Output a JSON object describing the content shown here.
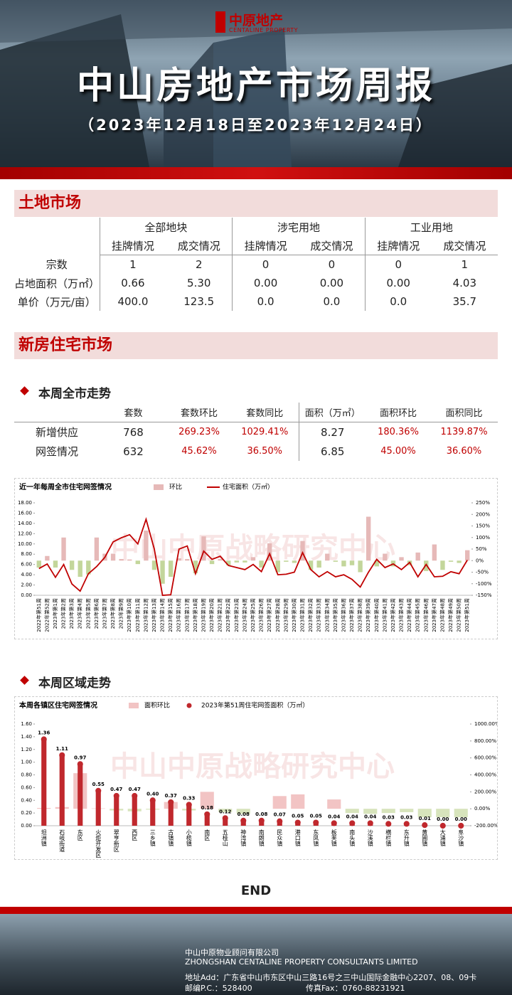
{
  "header": {
    "logo": "中原地产",
    "logo_en": "CENTALINE PROPERTY",
    "title": "中山房地产市场周报",
    "subtitle": "（2023年12月18日至2023年12月24日）"
  },
  "land_market": {
    "title": "土地市场",
    "groups": [
      "全部地块",
      "涉宅用地",
      "工业用地"
    ],
    "subheaders": [
      "挂牌情况",
      "成交情况",
      "挂牌情况",
      "成交情况",
      "挂牌情况",
      "成交情况"
    ],
    "rows": [
      [
        "宗数",
        "1",
        "2",
        "0",
        "0",
        "0",
        "1"
      ],
      [
        "占地面积（万㎡）",
        "0.66",
        "5.30",
        "0.00",
        "0.00",
        "0.00",
        "4.03"
      ],
      [
        "单价（万元/亩）",
        "400.0",
        "123.5",
        "0.0",
        "0.0",
        "0.0",
        "35.7"
      ]
    ]
  },
  "new_home": {
    "title": "新房住宅市场",
    "weekly_title": "本周全市走势",
    "headers": [
      "套数",
      "套数环比",
      "套数同比",
      "面积（万㎡）",
      "面积环比",
      "面积同比"
    ],
    "rows": [
      [
        "新增供应",
        "768",
        "269.23%",
        "1029.41%",
        "8.27",
        "180.36%",
        "1139.87%"
      ],
      [
        "网签情况",
        "632",
        "45.62%",
        "36.50%",
        "6.85",
        "45.00%",
        "36.60%"
      ]
    ],
    "region_title": "本周区域走势"
  },
  "chart_data": [
    {
      "type": "combo",
      "title": "近一年每周全市住宅网签情况",
      "watermark": "中山中原战略研究中心",
      "categories": [
        "2022年第51周",
        "2022年第52周",
        "2023年第1周",
        "2023年第2周",
        "2023年第3周",
        "2023年第4周",
        "2023年第5周",
        "2023年第6周",
        "2023年第7周",
        "2023年第8周",
        "2023年第9周",
        "2023年第10周",
        "2023年第11周",
        "2023年第12周",
        "2023年第13周",
        "2023年第14周",
        "2023年第15周",
        "2023年第16周",
        "2023年第17周",
        "2023年第18周",
        "2023年第19周",
        "2023年第20周",
        "2023年第21周",
        "2023年第22周",
        "2023年第23周",
        "2023年第24周",
        "2023年第25周",
        "2023年第26周",
        "2023年第27周",
        "2023年第28周",
        "2023年第29周",
        "2023年第30周",
        "2023年第31周",
        "2023年第32周",
        "2023年第33周",
        "2023年第34周",
        "2023年第35周",
        "2023年第36周",
        "2023年第37周",
        "2023年第38周",
        "2023年第39周",
        "2023年第40周",
        "2023年第41周",
        "2023年第42周",
        "2023年第43周",
        "2023年第44周",
        "2023年第45周",
        "2023年第46周",
        "2023年第47周",
        "2023年第48周",
        "2023年第49周",
        "2023年第50周",
        "2023年第51周"
      ],
      "series": [
        {
          "name": "环比",
          "type": "bar",
          "axis": "y2",
          "color": "#e6b9b8",
          "negative_color": "#c3d69b",
          "values": [
            -30,
            20,
            -30,
            100,
            -40,
            -70,
            -60,
            100,
            30,
            30,
            7,
            5,
            -15,
            130,
            -40,
            -100,
            -70,
            10,
            7,
            -55,
            105,
            -15,
            7,
            -20,
            -8,
            -8,
            15,
            -30,
            75,
            -50,
            -5,
            -10,
            85,
            -40,
            -30,
            30,
            -5,
            -25,
            -20,
            -50,
            190,
            -25,
            30,
            -25,
            15,
            -20,
            35,
            -45,
            70,
            -40,
            -5,
            -10,
            45
          ]
        },
        {
          "name": "住宅面积（万㎡）",
          "type": "line",
          "color": "#c00000",
          "values": [
            5.2,
            6.1,
            3.5,
            6.0,
            2.2,
            0.8,
            4.2,
            5.6,
            7.4,
            10.4,
            11.2,
            11.8,
            10.0,
            14.8,
            9.0,
            0.0,
            0.1,
            9.0,
            9.6,
            4.2,
            8.6,
            7.0,
            7.6,
            5.8,
            5.4,
            5.0,
            6.0,
            4.6,
            8.1,
            4.0,
            4.1,
            4.5,
            8.3,
            5.0,
            3.6,
            4.6,
            3.6,
            4.0,
            3.1,
            1.6,
            4.5,
            7.0,
            5.4,
            6.1,
            5.0,
            6.4,
            3.6,
            6.0,
            3.6,
            3.7,
            4.6,
            4.2,
            6.85
          ]
        }
      ],
      "ylim": [
        0,
        18
      ],
      "yticks": [
        {
          "value": 0,
          "label": "0.00"
        },
        {
          "value": 2,
          "label": "2.00"
        },
        {
          "value": 4,
          "label": "4.00"
        },
        {
          "value": 6,
          "label": "6.00"
        },
        {
          "value": 8,
          "label": "8.00"
        },
        {
          "value": 10,
          "label": "10.00"
        },
        {
          "value": 12,
          "label": "12.00"
        },
        {
          "value": 14,
          "label": "14.00"
        },
        {
          "value": 16,
          "label": "16.00"
        },
        {
          "value": 18,
          "label": "18.00"
        }
      ],
      "y2lim": [
        -150,
        250
      ],
      "y2ticks": [
        {
          "value": -150,
          "label": "-150%"
        },
        {
          "value": -100,
          "label": "-100%"
        },
        {
          "value": -50,
          "label": "-50%"
        },
        {
          "value": 0,
          "label": "0%"
        },
        {
          "value": 50,
          "label": "50%"
        },
        {
          "value": 100,
          "label": "100%"
        },
        {
          "value": 150,
          "label": "150%"
        },
        {
          "value": 200,
          "label": "200%"
        },
        {
          "value": 250,
          "label": "250%"
        }
      ]
    },
    {
      "type": "combo",
      "title": "本周各镇区住宅网签情况",
      "watermark": "中山中原战略研究中心",
      "categories": [
        "坦洲镇",
        "石岐街道",
        "东区",
        "火炬开发区",
        "翠亨新区",
        "西区",
        "三乡镇",
        "古镇镇",
        "小榄镇",
        "南区",
        "五桂山",
        "神湾镇",
        "南朗镇",
        "民众镇",
        "港口镇",
        "东凤镇",
        "板芙镇",
        "南头镇",
        "沙溪镇",
        "横栏镇",
        "东升镇",
        "黄圃镇",
        "大涌镇",
        "阜沙镇"
      ],
      "series": [
        {
          "name": "面积环比",
          "type": "bar",
          "axis": "y2",
          "color": "#f2c4c4",
          "negative_color": "#d7e4bc",
          "values": [
            10,
            20,
            420,
            5,
            -20,
            -30,
            -10,
            80,
            -20,
            200,
            -40,
            -60,
            0,
            150,
            170,
            0,
            110,
            -50,
            -60,
            -50,
            -40,
            -100,
            -100,
            -100
          ]
        },
        {
          "name": "2023年第51周住宅网签面积（万㎡）",
          "type": "lollipop",
          "color": "#c0282d",
          "values": [
            1.36,
            1.11,
            0.97,
            0.55,
            0.47,
            0.47,
            0.4,
            0.37,
            0.33,
            0.18,
            0.12,
            0.08,
            0.08,
            0.07,
            0.05,
            0.05,
            0.04,
            0.04,
            0.04,
            0.03,
            0.03,
            0.01,
            0.0,
            0.0
          ],
          "value_labels": [
            "1.36",
            "1.11",
            "0.97",
            "0.55",
            "0.47",
            "0.47",
            "0.40",
            "0.37",
            "0.33",
            "0.18",
            "0.12",
            "0.08",
            "0.08",
            "0.07",
            "0.05",
            "0.05",
            "0.04",
            "0.04",
            "0.04",
            "0.03",
            "0.03",
            "0.01",
            "0.00",
            "0.00"
          ]
        }
      ],
      "ylim": [
        0,
        1.6
      ],
      "yticks": [
        {
          "value": 0,
          "label": "0.00"
        },
        {
          "value": 0.2,
          "label": "0.20"
        },
        {
          "value": 0.4,
          "label": "0.40"
        },
        {
          "value": 0.6,
          "label": "0.60"
        },
        {
          "value": 0.8,
          "label": "0.80"
        },
        {
          "value": 1.0,
          "label": "1.00"
        },
        {
          "value": 1.2,
          "label": "1.20"
        },
        {
          "value": 1.4,
          "label": "1.40"
        },
        {
          "value": 1.6,
          "label": "1.60"
        }
      ],
      "y2lim": [
        -200,
        1000
      ],
      "y2ticks": [
        {
          "value": -200,
          "label": "-200.00%"
        },
        {
          "value": 0,
          "label": "0.00%"
        },
        {
          "value": 200,
          "label": "200.00%"
        },
        {
          "value": 400,
          "label": "400.00%"
        },
        {
          "value": 600,
          "label": "600.00%"
        },
        {
          "value": 800,
          "label": "800.00%"
        },
        {
          "value": 1000,
          "label": "1000.00%"
        }
      ]
    }
  ],
  "end": "END",
  "footer": {
    "company": "中山中原物业顾问有限公司",
    "company_en": "ZHONGSHAN CENTALINE PROPERTY CONSULTANTS LIMITED",
    "address": "地址Add：广东省中山市东区中山三路16号之三中山国际金融中心2207、08、09卡",
    "postcode": "邮编P.C.：528400",
    "fax": "传真Fax：0760-88231921"
  }
}
